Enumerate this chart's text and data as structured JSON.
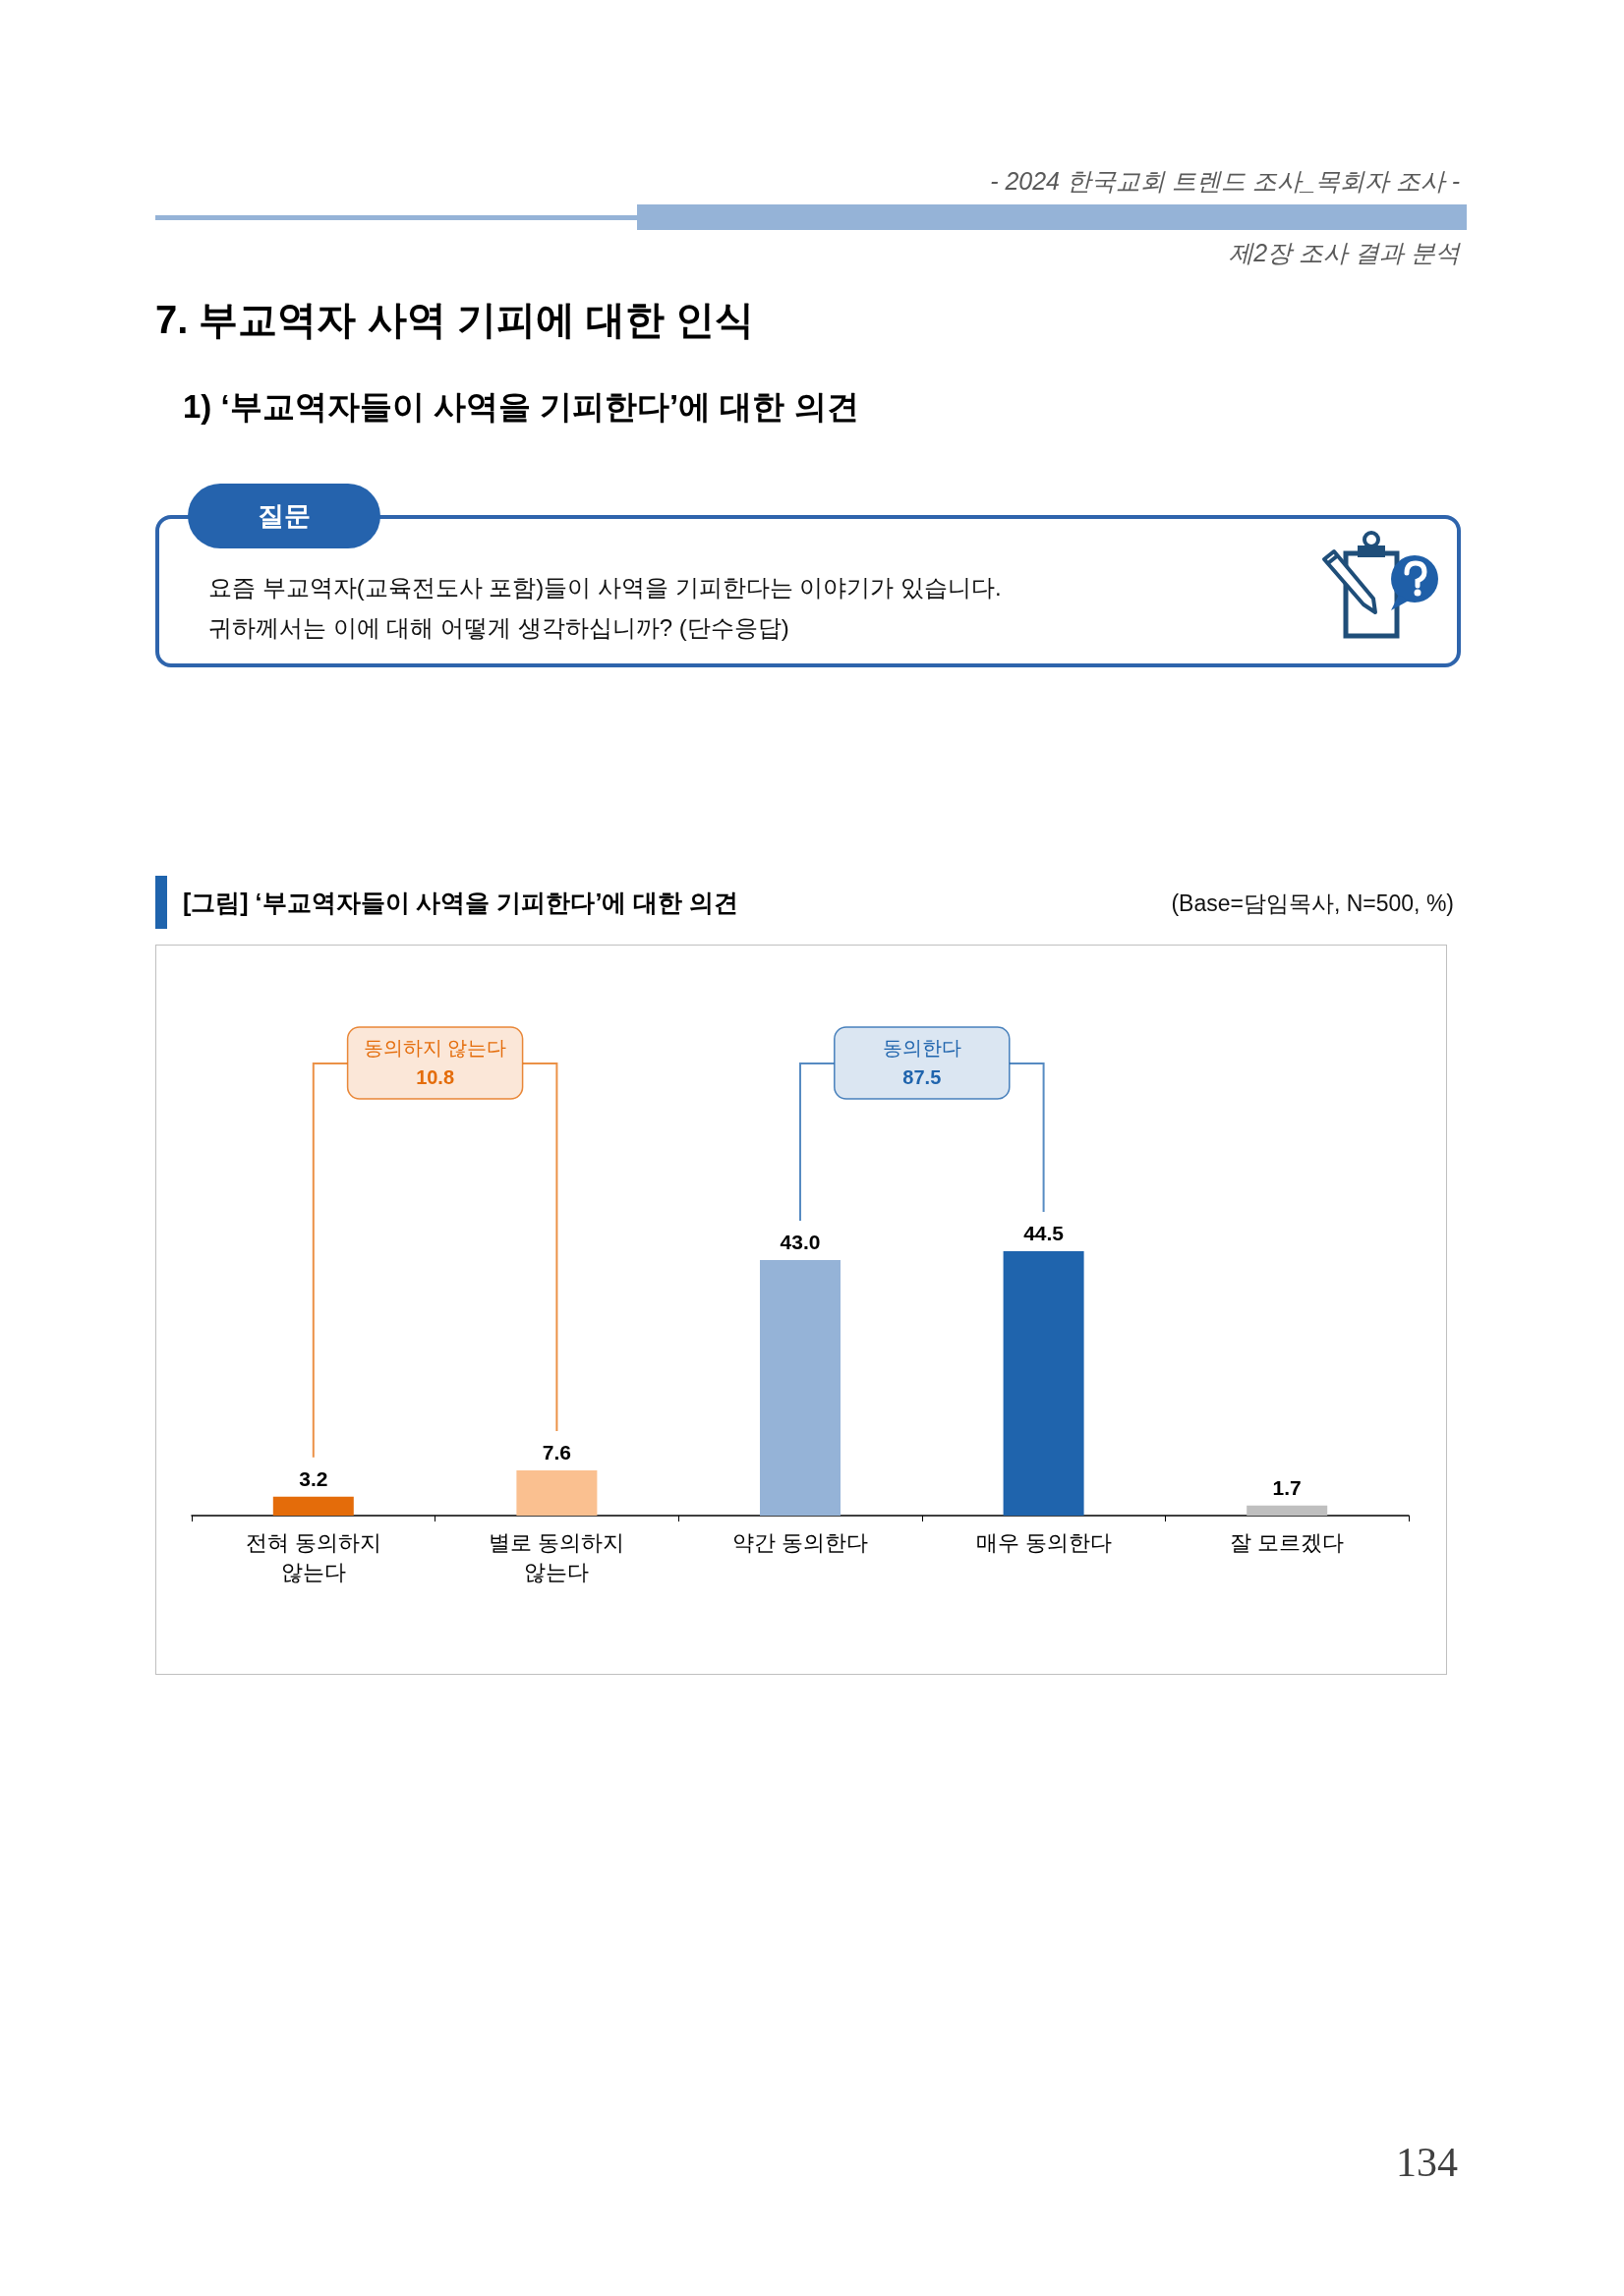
{
  "chart_data": {
    "type": "bar",
    "title": "[그림] ‘부교역자들이 사역을 기피한다’에 대한 의견",
    "subtitle": "(Base=담임목사, N=500, %)",
    "categories": [
      "전혀 동의하지 않는다",
      "별로 동의하지 않는다",
      "약간 동의한다",
      "매우 동의한다",
      "잘 모르겠다"
    ],
    "values": [
      3.2,
      7.6,
      43.0,
      44.5,
      1.7
    ],
    "value_labels": [
      "3.2",
      "7.6",
      "43.0",
      "44.5",
      "1.7"
    ],
    "colors": [
      "#e46c0a",
      "#fac090",
      "#95b3d7",
      "#1f64ad",
      "#bfbfbf"
    ],
    "annotations": [
      "동의하지 않는다\n10.8",
      "동의한다\n87.5",
      "- 2024 한국교회 트렌드 조사_목회자 조사 -",
      "제2장 조사 결과 분석",
      "7. 부교역자 사역 기피에 대한 인식",
      "1) ‘부교역자들이 사역을 기피한다’에 대한 의견",
      "질문",
      "요즘 부교역자(교육전도사 포함)들이 사역을 기피한다는 이야기가 있습니다.",
      "귀하께서는 이에 대해 어떻게 생각하십니까? (단수응답)",
      "134"
    ]
  }
}
